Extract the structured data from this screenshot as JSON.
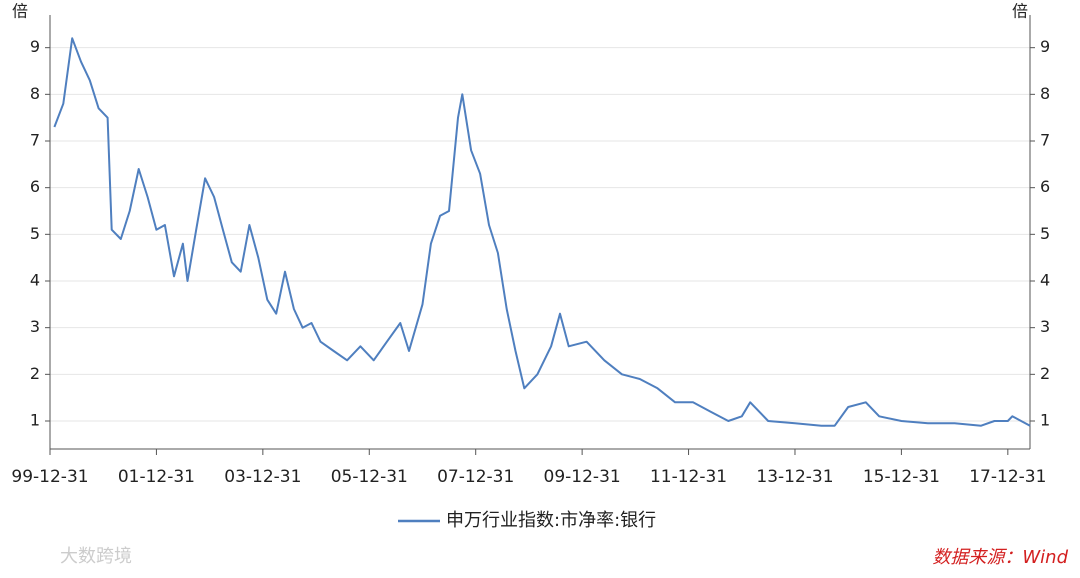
{
  "chart_data": {
    "type": "line",
    "y_unit": "倍",
    "y2_unit": "倍",
    "legend": "bottom",
    "grid": true,
    "source": "数据来源：Wind",
    "watermark": "大数跨境",
    "x": [
      "00-01-31",
      "00-03-31",
      "00-05-31",
      "00-07-31",
      "00-09-30",
      "00-11-30",
      "01-01-31",
      "01-02-28",
      "01-04-30",
      "01-06-30",
      "01-08-31",
      "01-10-31",
      "01-12-31",
      "02-02-28",
      "02-04-30",
      "02-06-30",
      "02-07-31",
      "02-09-30",
      "02-11-30",
      "03-01-31",
      "03-03-31",
      "03-05-31",
      "03-07-31",
      "03-09-30",
      "03-11-30",
      "04-01-31",
      "04-03-31",
      "04-05-31",
      "04-07-31",
      "04-09-30",
      "04-11-30",
      "05-01-31",
      "05-04-30",
      "05-07-31",
      "05-10-31",
      "06-01-31",
      "06-04-30",
      "06-07-31",
      "06-09-30",
      "06-12-31",
      "07-02-28",
      "07-04-30",
      "07-06-30",
      "07-08-31",
      "07-09-30",
      "07-11-30",
      "08-01-31",
      "08-03-31",
      "08-05-31",
      "08-07-31",
      "08-09-30",
      "08-11-30",
      "09-02-28",
      "09-05-31",
      "09-07-31",
      "09-09-30",
      "10-01-31",
      "10-05-31",
      "10-09-30",
      "11-01-31",
      "11-05-31",
      "11-09-30",
      "12-01-31",
      "12-05-31",
      "12-09-30",
      "12-12-31",
      "13-02-28",
      "13-06-30",
      "13-12-31",
      "14-06-30",
      "14-09-30",
      "14-12-31",
      "15-04-30",
      "15-07-31",
      "15-12-31",
      "16-06-30",
      "16-12-31",
      "17-06-30",
      "17-09-30",
      "17-12-31",
      "18-01-31",
      "18-05-31"
    ],
    "series": [
      {
        "name": "申万行业指数:市净率:银行",
        "color": "#4f7fbf",
        "values": [
          7.3,
          7.8,
          9.2,
          8.7,
          8.3,
          7.7,
          7.5,
          5.1,
          4.9,
          5.5,
          6.4,
          5.8,
          5.1,
          5.2,
          4.1,
          4.8,
          4.0,
          5.1,
          6.2,
          5.8,
          5.1,
          4.4,
          4.2,
          5.2,
          4.5,
          3.6,
          3.3,
          4.2,
          3.4,
          3.0,
          3.1,
          2.7,
          2.5,
          2.3,
          2.6,
          2.3,
          2.7,
          3.1,
          2.5,
          3.5,
          4.8,
          5.4,
          5.5,
          7.5,
          8.0,
          6.8,
          6.3,
          5.2,
          4.6,
          3.4,
          2.5,
          1.7,
          2.0,
          2.6,
          3.3,
          2.6,
          2.7,
          2.3,
          2.0,
          1.9,
          1.7,
          1.4,
          1.4,
          1.2,
          1.0,
          1.1,
          1.4,
          1.0,
          0.95,
          0.9,
          0.9,
          1.3,
          1.4,
          1.1,
          1.0,
          0.95,
          0.95,
          0.9,
          1.0,
          1.0,
          1.1,
          0.9
        ]
      }
    ],
    "xlim": [
      "99-12-31",
      "18-05-31"
    ],
    "xticks": [
      "99-12-31",
      "01-12-31",
      "03-12-31",
      "05-12-31",
      "07-12-31",
      "09-12-31",
      "11-12-31",
      "13-12-31",
      "15-12-31",
      "17-12-31"
    ],
    "ylim": [
      0.4,
      9.7
    ],
    "yticks": [
      1,
      2,
      3,
      4,
      5,
      6,
      7,
      8,
      9
    ]
  }
}
